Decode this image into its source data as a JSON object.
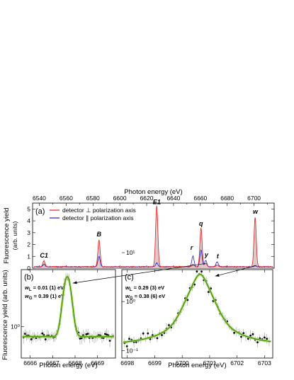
{
  "chart_data": [
    {
      "type": "line",
      "panel_label": "(a)",
      "xlabel": "Photon energy (eV)",
      "ylabel": "Fluorescence yield",
      "ylabel2": "(arb. units)",
      "xlim": [
        6535,
        6715
      ],
      "ylim": [
        0,
        5.5
      ],
      "x_ticks": [
        "6540",
        "6560",
        "6580",
        "6600",
        "6620",
        "6640",
        "6660",
        "6680",
        "6700"
      ],
      "y_ticks": [
        "0",
        "1",
        "2",
        "3",
        "4",
        "5"
      ],
      "legend": "top-left",
      "colors": {
        "perp": "#e02020",
        "par": "#2020d0",
        "fill": "#d9c3c3"
      },
      "series": [
        {
          "name": "detector ⊥ polarization axis",
          "color": "#e02020",
          "peaks": [
            [
              6543.5,
              0.55
            ],
            [
              6584.5,
              2.3
            ],
            [
              6627.5,
              5.2
            ],
            [
              6654.5,
              0.25
            ],
            [
              6660.5,
              3.3
            ],
            [
              6664.0,
              0.35
            ],
            [
              6672.5,
              0.2
            ],
            [
              6700.8,
              4.2
            ]
          ],
          "baseline": 0.12
        },
        {
          "name": "detector ∥ polarization axis",
          "color": "#2020d0",
          "peaks": [
            [
              6543.5,
              0.25
            ],
            [
              6584.5,
              0.9
            ],
            [
              6627.5,
              0.35
            ],
            [
              6654.5,
              0.95
            ],
            [
              6660.5,
              1.45
            ],
            [
              6664.0,
              0.55
            ],
            [
              6672.5,
              0.45
            ],
            [
              6700.8,
              0.15
            ]
          ],
          "baseline": 0.12
        }
      ],
      "annotations": [
        "C1",
        "B",
        "E1",
        "r",
        "q",
        "y",
        "t",
        "w"
      ]
    },
    {
      "type": "scatter",
      "panel_label": "(b)",
      "xlabel": "Photon energy (eV)",
      "ylabel": "Fluorescence yield (arb. units)",
      "xlim": [
        6665.6,
        6669.8
      ],
      "y_log_range": [
        0.5,
        3.5
      ],
      "x_ticks": [
        "6666",
        "6667",
        "6668",
        "6669"
      ],
      "y_ticks": [
        "10⁰"
      ],
      "fit_text": [
        "w",
        "L",
        " = 0.01 (1) eV",
        "w",
        "G",
        " = 0.39 (1) eV"
      ],
      "fit": {
        "center": 6667.65,
        "peak": 3.0,
        "baseline": 0.8,
        "sigma": 0.17
      }
    },
    {
      "type": "scatter",
      "panel_label": "(c)",
      "xlabel": "Photon energy (eV)",
      "xlim": [
        6697.8,
        6703.3
      ],
      "y_log_range": [
        0.07,
        4.5
      ],
      "x_ticks": [
        "6698",
        "6699",
        "6700",
        "6701",
        "6702",
        "6703"
      ],
      "y_ticks": [
        "10¹",
        "10⁰",
        "10⁻¹"
      ],
      "fit_text": [
        "w",
        "L",
        " = 0.29 (3) eV",
        "w",
        "G",
        " = 0.38 (6) eV"
      ],
      "fit": {
        "center": 6700.65,
        "peak": 3.6,
        "baseline": 0.12,
        "gamma": 0.29,
        "sigma": 0.16
      }
    }
  ]
}
